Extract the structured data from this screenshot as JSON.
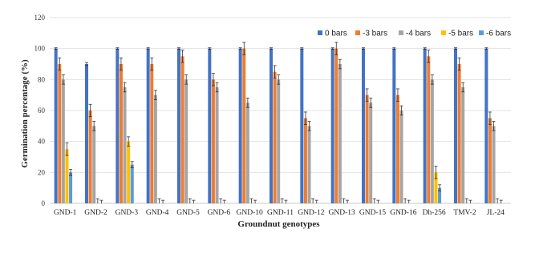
{
  "chart_data": {
    "type": "bar",
    "title": "",
    "xlabel": "Groundnut genotypes",
    "ylabel": "Germination percentage (%)",
    "ylim": [
      0,
      120
    ],
    "yticks": [
      0,
      20,
      40,
      60,
      80,
      100,
      120
    ],
    "grid": true,
    "legend_position": "top-right",
    "categories": [
      "GND-1",
      "GND-2",
      "GND-3",
      "GND-4",
      "GND-5",
      "GND-6",
      "GND-10",
      "GND-11",
      "GND-12",
      "GND-13",
      "GND-15",
      "GND-16",
      "Dh-256",
      "TMV-2",
      "JL-24"
    ],
    "series": [
      {
        "name": "0 bars",
        "color": "#4472C4",
        "values": [
          100,
          90,
          100,
          100,
          100,
          100,
          100,
          100,
          100,
          100,
          100,
          100,
          100,
          100,
          100
        ],
        "errors": [
          0.5,
          1,
          0.5,
          0.5,
          0.5,
          0.5,
          0.5,
          0.5,
          0.5,
          0.5,
          0.5,
          0.5,
          0.5,
          0.5,
          0.5
        ]
      },
      {
        "name": "-3 bars",
        "color": "#ED7D31",
        "values": [
          90,
          60,
          90,
          90,
          95,
          80,
          100,
          85,
          55,
          100,
          70,
          70,
          95,
          90,
          55
        ],
        "errors": [
          4,
          4,
          4,
          4,
          4,
          4,
          4,
          4,
          4,
          4,
          4,
          4,
          4,
          4,
          4
        ]
      },
      {
        "name": "-4 bars",
        "color": "#A5A5A5",
        "values": [
          80,
          50,
          75,
          70,
          80,
          75,
          65,
          80,
          50,
          90,
          65,
          60,
          80,
          75,
          50
        ],
        "errors": [
          3,
          3,
          3,
          3,
          3,
          3,
          3,
          3,
          3,
          3,
          3,
          3,
          3,
          3,
          3
        ]
      },
      {
        "name": "-5 bars",
        "color": "#FFC000",
        "values": [
          35,
          0,
          40,
          0,
          0,
          0,
          0,
          0,
          0,
          0,
          0,
          0,
          20,
          0,
          0
        ],
        "errors": [
          4,
          3,
          3,
          3,
          3,
          3,
          3,
          3,
          3,
          3,
          3,
          3,
          4,
          3,
          3
        ]
      },
      {
        "name": "-6 bars",
        "color": "#5B9BD5",
        "values": [
          20,
          0,
          25,
          0,
          0,
          0,
          0,
          0,
          0,
          0,
          0,
          0,
          10,
          0,
          0
        ],
        "errors": [
          2,
          2,
          2,
          2,
          2,
          2,
          2,
          2,
          2,
          2,
          2,
          2,
          2,
          2,
          2
        ]
      }
    ]
  }
}
